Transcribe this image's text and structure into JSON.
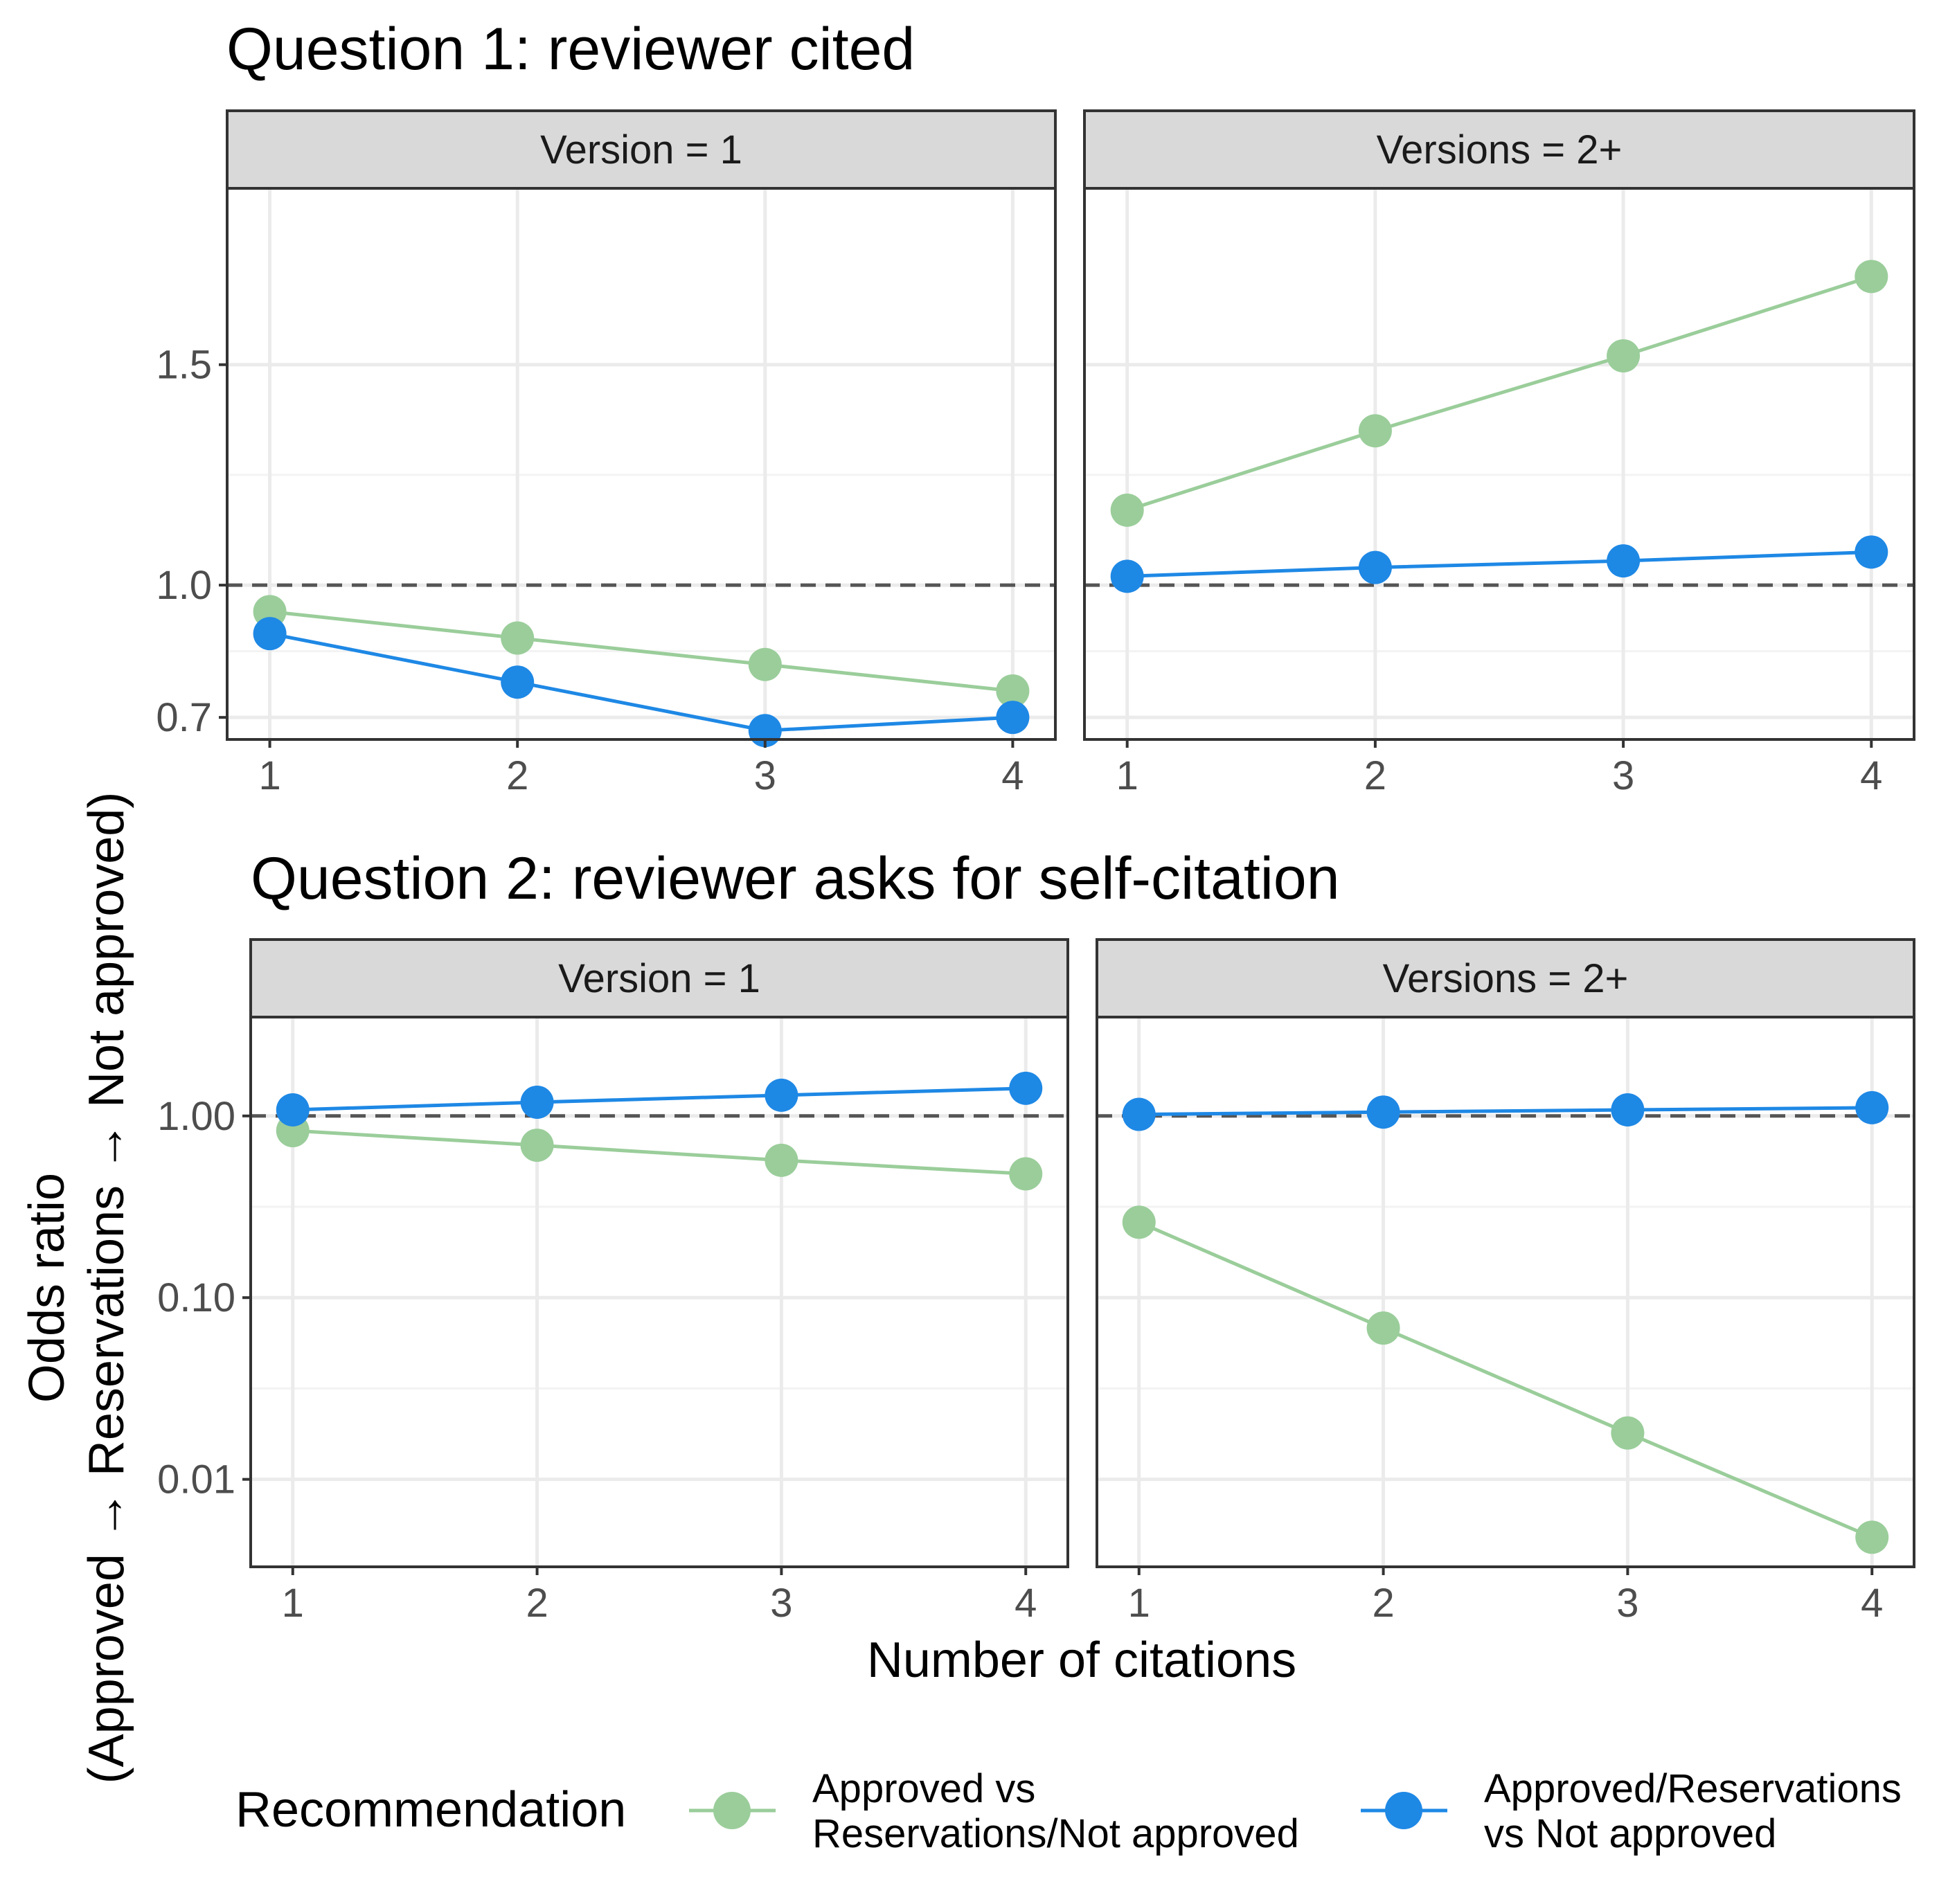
{
  "chart_data": [
    {
      "type": "line",
      "title": "Question 1: reviewer cited",
      "y_scale": "linear",
      "yticks": [
        0.7,
        1.0,
        1.5
      ],
      "ytick_labels": [
        "0.7",
        "1.0",
        "1.5"
      ],
      "ylim": [
        0.65,
        1.9
      ],
      "reference_line": 1.0,
      "panels": [
        {
          "strip": "Version = 1",
          "x": [
            1,
            2,
            3,
            4
          ],
          "xtick_labels": [
            "1",
            "2",
            "3",
            "4"
          ],
          "series": [
            {
              "key": "approved_vs_rest",
              "values": [
                0.94,
                0.88,
                0.82,
                0.76
              ]
            },
            {
              "key": "approved_res_vs_not",
              "values": [
                0.89,
                0.78,
                0.67,
                0.7
              ]
            }
          ]
        },
        {
          "strip": "Versions = 2+",
          "x": [
            1,
            2,
            3,
            4
          ],
          "xtick_labels": [
            "1",
            "2",
            "3",
            "4"
          ],
          "series": [
            {
              "key": "approved_vs_rest",
              "values": [
                1.17,
                1.35,
                1.52,
                1.7
              ]
            },
            {
              "key": "approved_res_vs_not",
              "values": [
                1.02,
                1.04,
                1.055,
                1.075
              ]
            }
          ]
        }
      ]
    },
    {
      "type": "line",
      "title": "Question 2: reviewer asks for self-citation",
      "y_scale": "log10",
      "yticks": [
        0.01,
        0.1,
        1.0
      ],
      "ytick_labels": [
        "0.01",
        "0.10",
        "1.00"
      ],
      "ylim": [
        0.0033,
        3.5
      ],
      "reference_line": 1.0,
      "panels": [
        {
          "strip": "Version = 1",
          "x": [
            1,
            2,
            3,
            4
          ],
          "xtick_labels": [
            "1",
            "2",
            "3",
            "4"
          ],
          "series": [
            {
              "key": "approved_vs_rest",
              "values": [
                0.83,
                0.69,
                0.57,
                0.48
              ]
            },
            {
              "key": "approved_res_vs_not",
              "values": [
                1.08,
                1.19,
                1.3,
                1.42
              ]
            }
          ]
        },
        {
          "strip": "Versions = 2+",
          "x": [
            1,
            2,
            3,
            4
          ],
          "xtick_labels": [
            "1",
            "2",
            "3",
            "4"
          ],
          "series": [
            {
              "key": "approved_vs_rest",
              "values": [
                0.26,
                0.068,
                0.018,
                0.0048
              ]
            },
            {
              "key": "approved_res_vs_not",
              "values": [
                1.02,
                1.05,
                1.08,
                1.11
              ]
            }
          ]
        }
      ]
    }
  ],
  "axes": {
    "xlabel": "Number of citations",
    "ylabel_line1": "Odds ratio",
    "ylabel_line2": "(Approved → Reservations → Not approved)"
  },
  "legend": {
    "title": "Recommendation",
    "position": "bottom",
    "items": [
      {
        "key": "approved_vs_rest",
        "line1": "Approved vs",
        "line2": "Reservations/Not approved",
        "color": "#9ACD9A"
      },
      {
        "key": "approved_res_vs_not",
        "line1": "Approved/Reservations",
        "line2": "vs Not approved",
        "color": "#1E88E5"
      }
    ]
  },
  "style": {
    "strip_fill": "#D9D9D9",
    "grid_color": "#EBEBEB",
    "border_color": "#333333",
    "reference_line_color": "#555555"
  }
}
